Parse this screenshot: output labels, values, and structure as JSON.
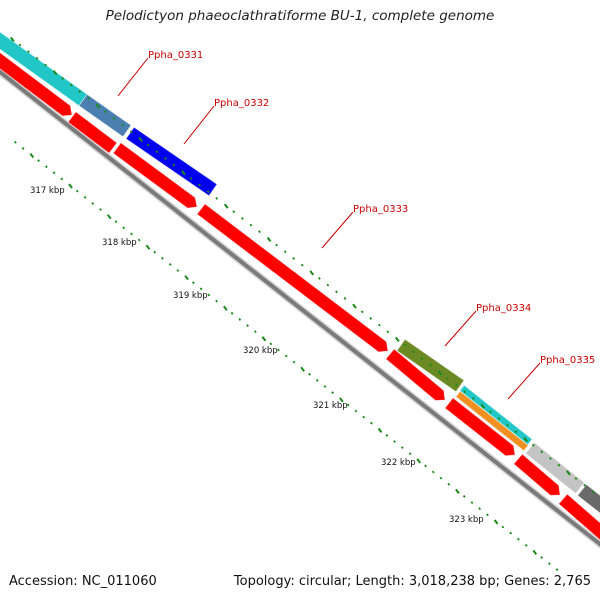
{
  "title": "Pelodictyon phaeoclathratiforme BU-1, complete genome",
  "accession": "Accession: NC_011060",
  "summary": "Topology: circular; Length: 3,018,238 bp; Genes: 2,765",
  "colors": {
    "cds_red": "#ff0000",
    "backbone_grey": "#7a7a7a",
    "tick_green": "#1a8a1a",
    "label_red": "#cc0000",
    "cyan": "#21c7c7",
    "steel_blue": "#4a7fb0",
    "blue": "#0000ee",
    "olive": "#6b8a23",
    "orange": "#f09020",
    "light_grey": "#c4c4c4",
    "dark_grey": "#6a6a6a"
  },
  "kbp_labels": [
    "317 kbp",
    "318 kbp",
    "319 kbp",
    "320 kbp",
    "321 kbp",
    "322 kbp",
    "323 kbp"
  ],
  "gene_labels": [
    "Ppha_0331",
    "Ppha_0332",
    "Ppha_0333",
    "Ppha_0334",
    "Ppha_0335"
  ]
}
